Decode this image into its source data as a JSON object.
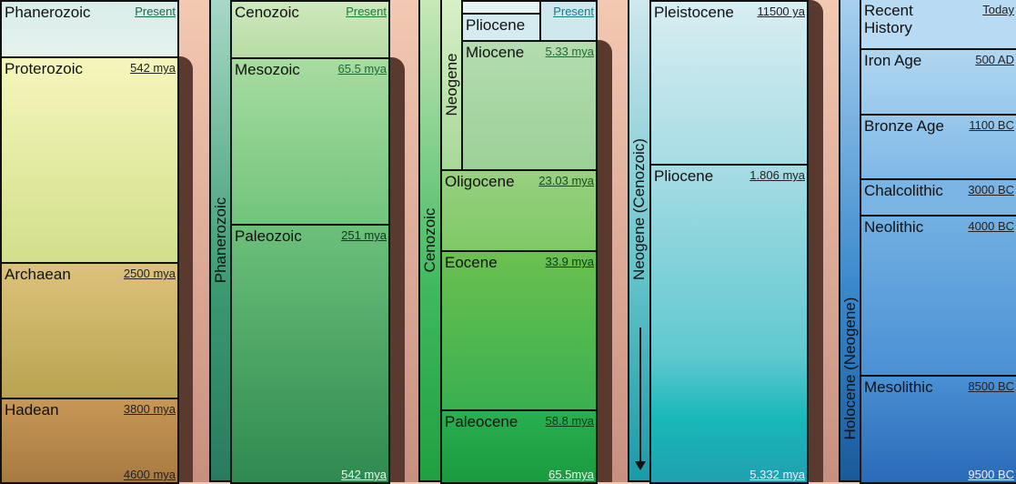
{
  "panel1": {
    "eons": [
      {
        "name": "Phanerozoic",
        "date": "Present"
      },
      {
        "name": "Proterozoic",
        "date": "542 mya"
      },
      {
        "name": "Archaean",
        "date": "2500 mya"
      },
      {
        "name": "Hadean",
        "date": "3800 mya",
        "end": "4600 mya"
      }
    ]
  },
  "panel2": {
    "strip": "Phanerozoic",
    "eras": [
      {
        "name": "Cenozoic",
        "date": "Present"
      },
      {
        "name": "Mesozoic",
        "date": "65.5 mya"
      },
      {
        "name": "Paleozoic",
        "date": "251 mya",
        "end": "542 mya"
      }
    ]
  },
  "panel3": {
    "strip": "Cenozoic",
    "sub_strip": "Neogene",
    "present": "Present",
    "epochs": [
      {
        "name": "Pliocene"
      },
      {
        "name": "Miocene",
        "date": "5.33 mya"
      },
      {
        "name": "Oligocene",
        "date": "23.03 mya"
      },
      {
        "name": "Eocene",
        "date": "33.9 mya"
      },
      {
        "name": "Paleocene",
        "date": "58.8 mya",
        "end": "65.5mya"
      }
    ]
  },
  "panel4": {
    "strip": "Neogene (Cenozoic)",
    "epochs": [
      {
        "name": "Pleistocene",
        "date": "11500 ya"
      },
      {
        "name": "Pliocene",
        "date": "1.806 mya",
        "end": "5.332 mya"
      }
    ]
  },
  "panel5": {
    "strip": "Holocene (Neogene)",
    "ages": [
      {
        "name": "Recent History",
        "date": "Today"
      },
      {
        "name": "Iron Age",
        "date": "500 AD"
      },
      {
        "name": "Bronze Age",
        "date": "1100 BC"
      },
      {
        "name": "Chalcolithic",
        "date": "3000 BC"
      },
      {
        "name": "Neolithic",
        "date": "4000 BC"
      },
      {
        "name": "Mesolithic",
        "date": "8500 BC",
        "end": "9500 BC"
      }
    ]
  },
  "colors": {
    "connector": "#5a3a2e",
    "background": "#f3c9b2"
  }
}
